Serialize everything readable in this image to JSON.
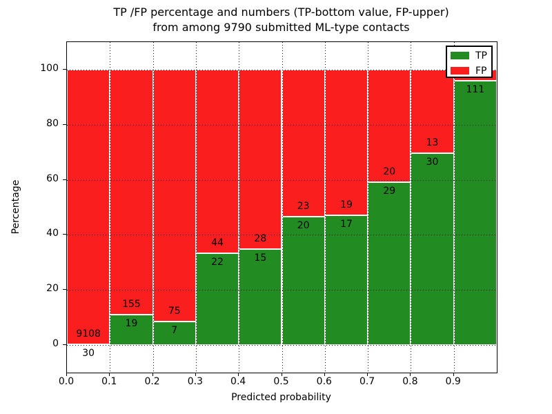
{
  "chart_data": {
    "type": "bar",
    "stacked": true,
    "title_line1": "TP /FP percentage and numbers (TP-bottom value, FP-upper)",
    "title_line2": "from among 9790 submitted ML-type contacts",
    "xlabel": "Predicted probability",
    "ylabel": "Percentage",
    "total_contacts": 9790,
    "x_tick_labels": [
      "0.0",
      "0.1",
      "0.2",
      "0.3",
      "0.4",
      "0.5",
      "0.6",
      "0.7",
      "0.8",
      "0.9"
    ],
    "y_tick_labels": [
      "0",
      "20",
      "40",
      "60",
      "80",
      "100"
    ],
    "y_tick_values": [
      0,
      20,
      40,
      60,
      80,
      100
    ],
    "ylim": [
      -10,
      110
    ],
    "grid": true,
    "legend_position": "upper right",
    "colors": {
      "tp": "#228b22",
      "fp": "#fa1e1e"
    },
    "legend": [
      {
        "label": "TP",
        "color": "#228b22"
      },
      {
        "label": "FP",
        "color": "#fa1e1e"
      }
    ],
    "bins": [
      {
        "x": "0.0",
        "tp": 30,
        "fp": 9108,
        "tp_pct": 0.33,
        "tp_label": "30",
        "fp_label": "9108"
      },
      {
        "x": "0.1",
        "tp": 19,
        "fp": 155,
        "tp_pct": 10.92,
        "tp_label": "19",
        "fp_label": "155"
      },
      {
        "x": "0.2",
        "tp": 7,
        "fp": 75,
        "tp_pct": 8.54,
        "tp_label": "7",
        "fp_label": "75"
      },
      {
        "x": "0.3",
        "tp": 22,
        "fp": 44,
        "tp_pct": 33.33,
        "tp_label": "22",
        "fp_label": "44"
      },
      {
        "x": "0.4",
        "tp": 15,
        "fp": 28,
        "tp_pct": 34.88,
        "tp_label": "15",
        "fp_label": "28"
      },
      {
        "x": "0.5",
        "tp": 20,
        "fp": 23,
        "tp_pct": 46.51,
        "tp_label": "20",
        "fp_label": "23"
      },
      {
        "x": "0.6",
        "tp": 17,
        "fp": 19,
        "tp_pct": 47.22,
        "tp_label": "17",
        "fp_label": "19"
      },
      {
        "x": "0.7",
        "tp": 29,
        "fp": 20,
        "tp_pct": 59.18,
        "tp_label": "29",
        "fp_label": "20"
      },
      {
        "x": "0.8",
        "tp": 30,
        "fp": 13,
        "tp_pct": 69.77,
        "tp_label": "30",
        "fp_label": "13"
      },
      {
        "x": "0.9",
        "tp": 111,
        "fp": null,
        "tp_pct": 96.0,
        "tp_label": "111",
        "fp_label": ""
      }
    ]
  }
}
